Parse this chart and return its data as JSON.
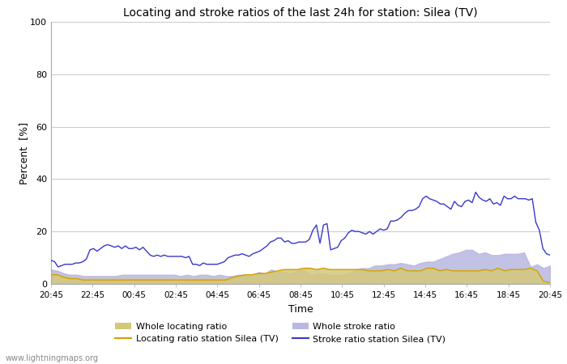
{
  "title": "Locating and stroke ratios of the last 24h for station: Silea (TV)",
  "xlabel": "Time",
  "ylabel": "Percent  [%]",
  "ylim": [
    0,
    100
  ],
  "yticks": [
    0,
    20,
    40,
    60,
    80,
    100
  ],
  "x_labels": [
    "20:45",
    "22:45",
    "00:45",
    "02:45",
    "04:45",
    "06:45",
    "08:45",
    "10:45",
    "12:45",
    "14:45",
    "16:45",
    "18:45",
    "20:45"
  ],
  "watermark": "www.lightningmaps.org",
  "bg_color": "#ffffff",
  "plot_bg_color": "#ffffff",
  "grid_color": "#cccccc",
  "whole_locating_color": "#d4c87a",
  "whole_stroke_color": "#b8b8e0",
  "locating_line_color": "#d4a000",
  "stroke_line_color": "#3838cc",
  "whole_locating_ratio": [
    3.5,
    3.5,
    3.0,
    2.5,
    2.0,
    2.0,
    2.0,
    2.0,
    2.0,
    2.0,
    2.0,
    2.0,
    2.0,
    2.0,
    2.0,
    2.0,
    2.0,
    2.0,
    2.0,
    2.0,
    2.0,
    2.0,
    2.0,
    2.0,
    2.0,
    2.0,
    2.0,
    2.0,
    2.5,
    3.0,
    3.5,
    3.5,
    4.0,
    4.0,
    4.5,
    5.0,
    5.5,
    5.5,
    5.5,
    6.0,
    6.0,
    5.5,
    6.0,
    5.5,
    5.5,
    5.5,
    5.5,
    5.5,
    5.5,
    5.0,
    5.0,
    5.0,
    5.5,
    5.0,
    6.0,
    5.0,
    5.0,
    5.0,
    6.0,
    6.0,
    5.0,
    5.5,
    5.0,
    5.0,
    5.0,
    5.0,
    5.0,
    5.5,
    5.0,
    6.0,
    5.0,
    5.5,
    5.5,
    5.5,
    6.0,
    5.0,
    1.0,
    0.5
  ],
  "whole_stroke_ratio": [
    5.5,
    5.0,
    4.0,
    3.5,
    3.5,
    3.0,
    3.0,
    3.0,
    3.0,
    3.0,
    3.0,
    3.5,
    3.5,
    3.5,
    3.5,
    3.5,
    3.5,
    3.5,
    3.5,
    3.5,
    3.0,
    3.5,
    3.0,
    3.5,
    3.5,
    3.0,
    3.5,
    3.0,
    3.0,
    3.5,
    3.5,
    3.0,
    4.5,
    4.0,
    5.5,
    4.5,
    4.5,
    4.0,
    5.0,
    5.5,
    3.5,
    4.0,
    4.0,
    3.5,
    3.5,
    3.5,
    4.0,
    5.5,
    6.0,
    6.0,
    7.0,
    7.0,
    7.5,
    7.5,
    8.0,
    7.5,
    7.0,
    8.0,
    8.5,
    8.5,
    9.5,
    10.5,
    11.5,
    12.0,
    13.0,
    13.0,
    11.5,
    12.0,
    11.0,
    11.0,
    11.5,
    11.5,
    11.5,
    12.0,
    6.5,
    7.5,
    6.0,
    7.0
  ],
  "locating_ratio": [
    3.5,
    3.5,
    2.5,
    2.0,
    2.0,
    1.5,
    1.5,
    1.5,
    1.5,
    1.5,
    1.5,
    1.5,
    1.5,
    1.5,
    1.5,
    1.5,
    1.5,
    1.5,
    1.5,
    1.5,
    1.5,
    1.5,
    1.5,
    1.5,
    1.5,
    1.5,
    1.5,
    1.5,
    2.5,
    3.0,
    3.5,
    3.5,
    4.0,
    4.0,
    4.5,
    5.0,
    5.5,
    5.5,
    5.5,
    6.0,
    6.0,
    5.5,
    6.0,
    5.5,
    5.5,
    5.5,
    5.5,
    5.5,
    5.5,
    5.0,
    5.0,
    5.0,
    5.5,
    5.0,
    6.0,
    5.0,
    5.0,
    5.0,
    6.0,
    6.0,
    5.0,
    5.5,
    5.0,
    5.0,
    5.0,
    5.0,
    5.0,
    5.5,
    5.0,
    6.0,
    5.0,
    5.5,
    5.5,
    5.5,
    6.0,
    5.0,
    1.0,
    0.5
  ],
  "stroke_ratio": [
    9.0,
    8.5,
    6.5,
    7.0,
    7.5,
    7.5,
    7.5,
    8.0,
    8.0,
    8.5,
    9.5,
    13.0,
    13.5,
    12.5,
    13.5,
    14.5,
    15.0,
    14.5,
    14.0,
    14.5,
    13.5,
    14.5,
    13.5,
    13.5,
    14.0,
    13.0,
    14.0,
    12.5,
    11.0,
    10.5,
    11.0,
    10.5,
    11.0,
    10.5,
    10.5,
    10.5,
    10.5,
    10.5,
    10.0,
    10.5,
    7.5,
    7.5,
    7.0,
    8.0,
    7.5,
    7.5,
    7.5,
    7.5,
    8.0,
    8.5,
    10.0,
    10.5,
    11.0,
    11.0,
    11.5,
    11.0,
    10.5,
    11.5,
    12.0,
    12.5,
    13.5,
    14.5,
    16.0,
    16.5,
    17.5,
    17.5,
    16.0,
    16.5,
    15.5,
    15.5,
    16.0,
    16.0,
    16.0,
    17.0,
    20.5,
    22.5,
    15.5,
    22.5,
    23.0,
    13.0,
    13.5,
    14.0,
    16.5,
    17.5,
    19.5,
    20.5,
    20.0,
    20.0,
    19.5,
    19.0,
    20.0,
    19.0,
    20.0,
    21.0,
    20.5,
    21.0,
    24.0,
    24.0,
    24.5,
    25.5,
    27.0,
    28.0,
    28.0,
    28.5,
    29.5,
    32.5,
    33.5,
    32.5,
    32.0,
    31.5,
    30.5,
    30.5,
    29.5,
    28.5,
    31.5,
    30.0,
    29.5,
    31.5,
    32.0,
    31.0,
    35.0,
    33.0,
    32.0,
    31.5,
    32.5,
    30.5,
    31.0,
    30.0,
    33.5,
    32.5,
    32.5,
    33.5,
    32.5,
    32.5,
    32.5,
    32.0,
    32.5,
    23.5,
    20.5,
    13.5,
    11.5,
    11.0
  ]
}
